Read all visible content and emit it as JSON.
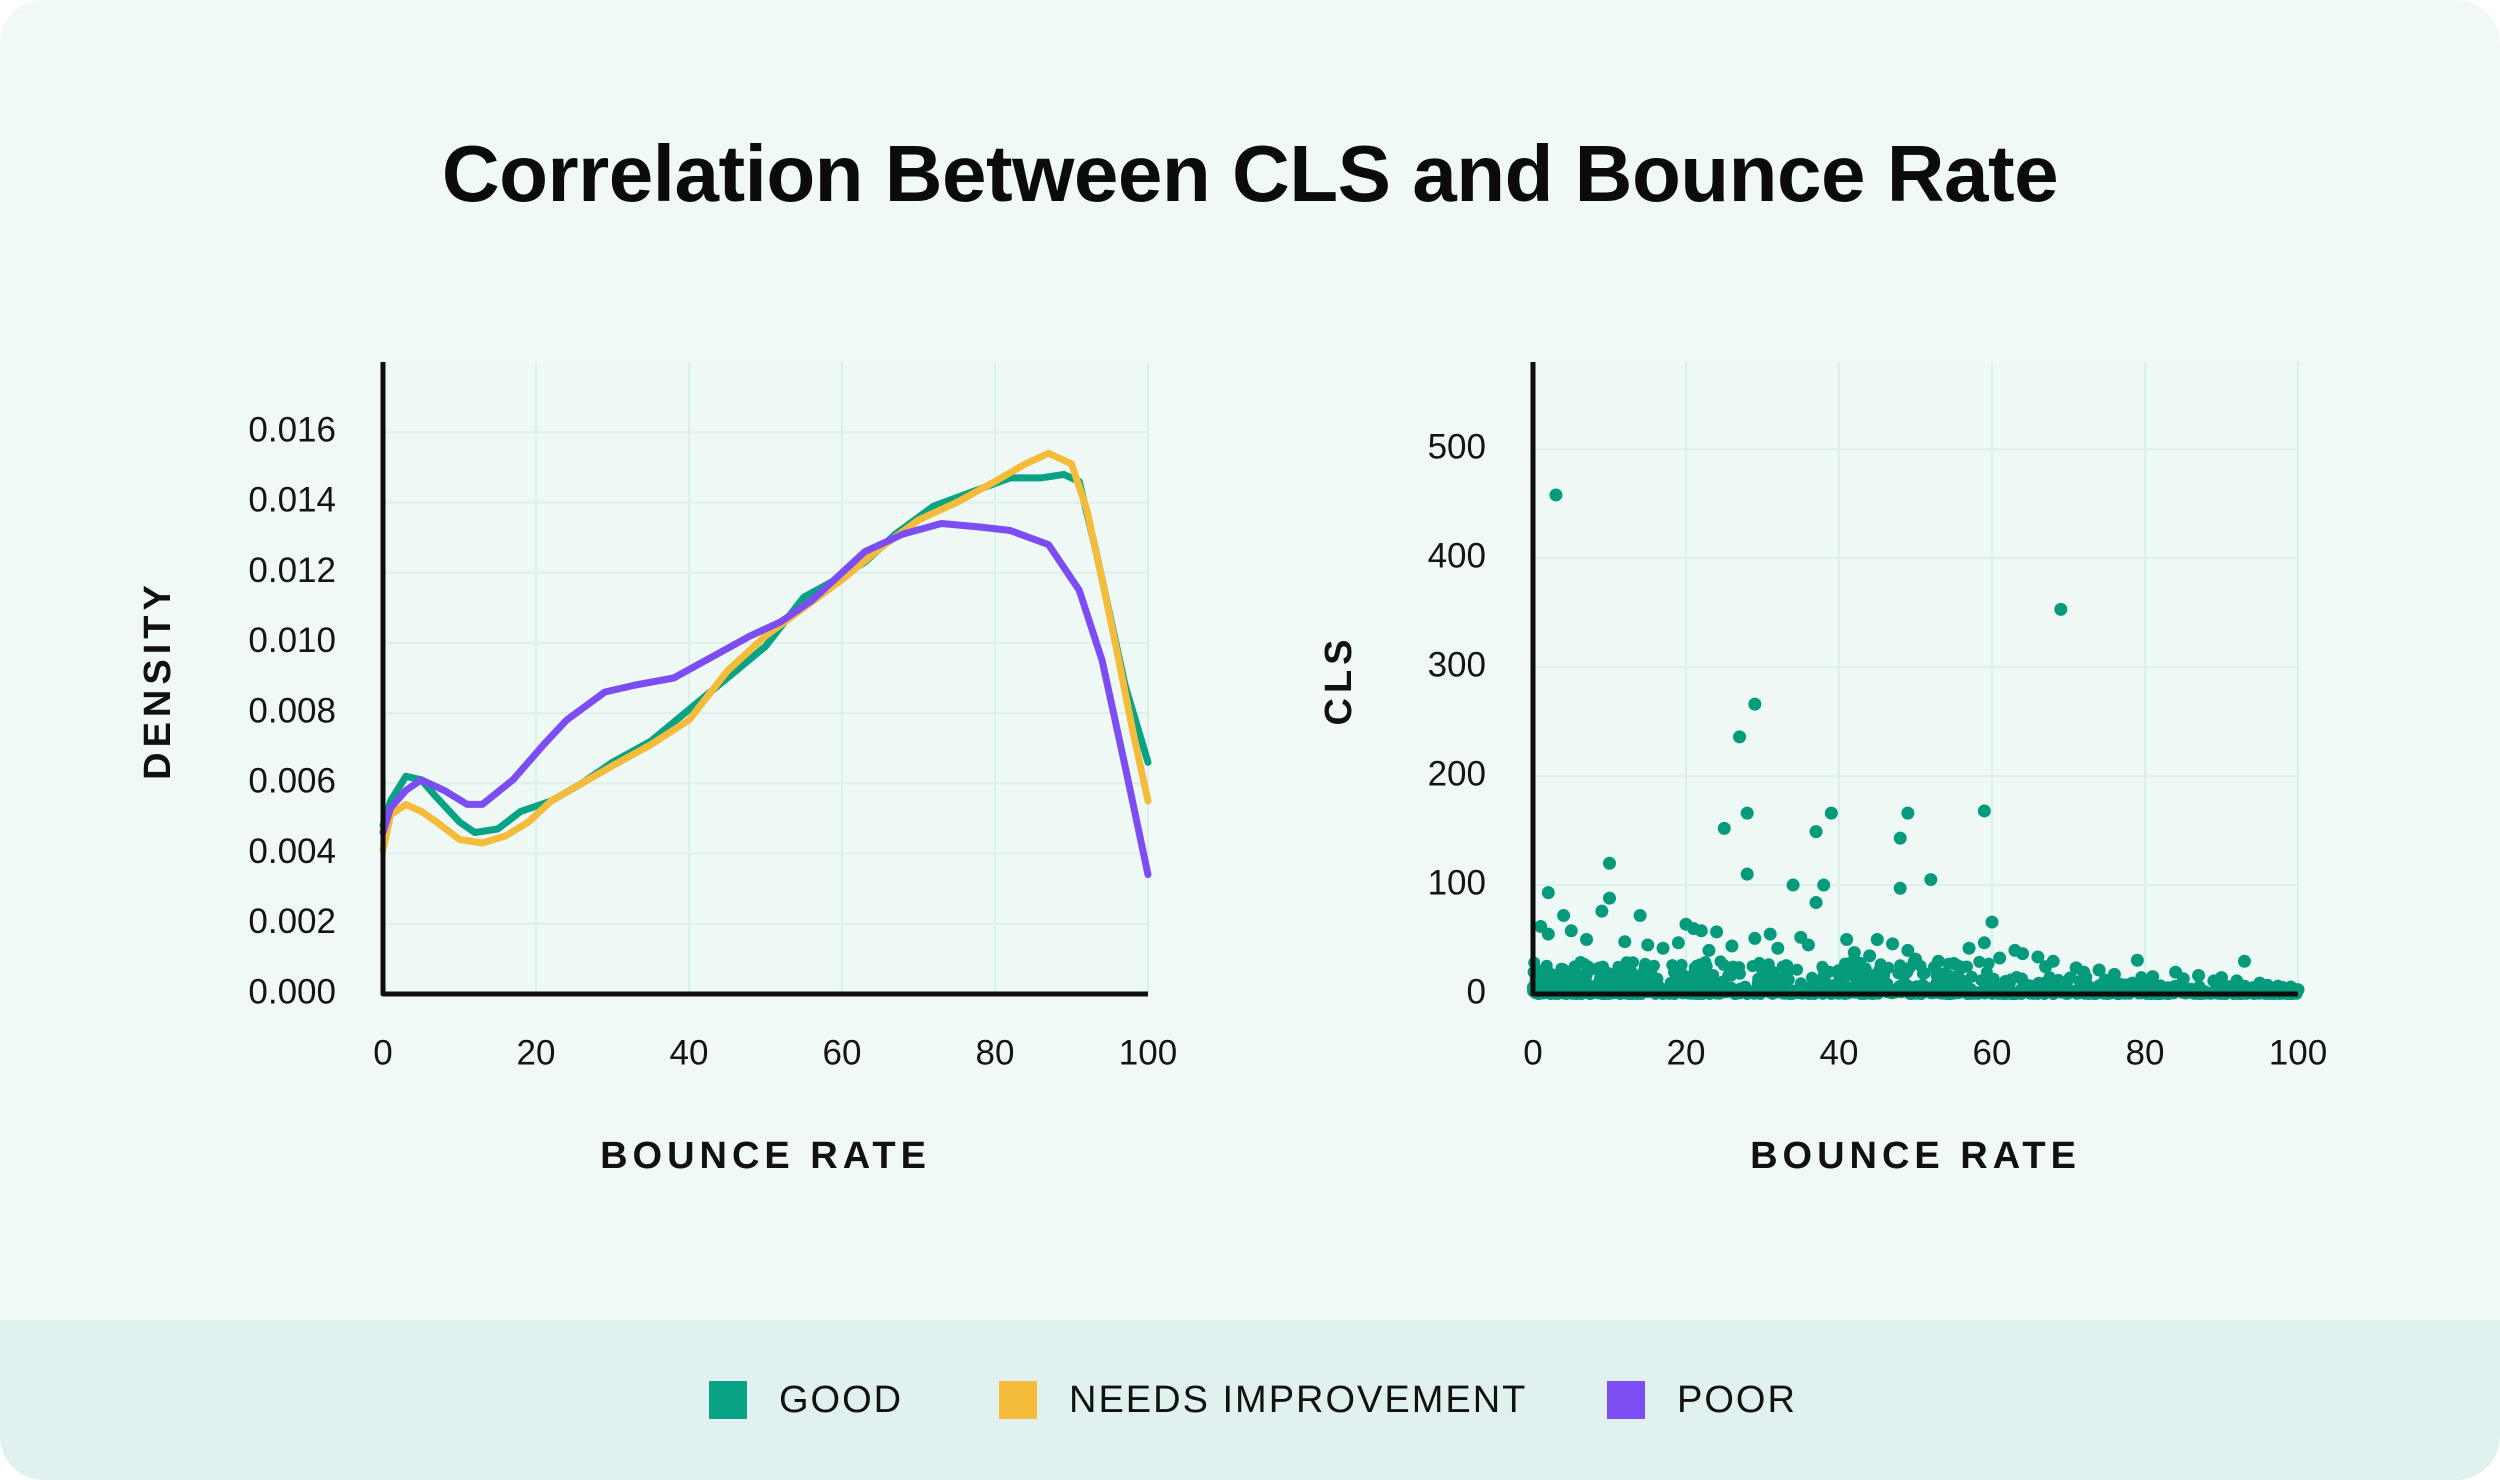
{
  "title": "Correlation Between CLS and Bounce Rate",
  "colors": {
    "good": "#08a284",
    "needs_improvement": "#f5bc3c",
    "poor": "#7c4df2",
    "scatter": "#069a7d"
  },
  "legend": [
    {
      "label": "GOOD",
      "color": "#08a284"
    },
    {
      "label": "NEEDS IMPROVEMENT",
      "color": "#f5bc3c"
    },
    {
      "label": "POOR",
      "color": "#7c4df2"
    }
  ],
  "chart_data": [
    {
      "type": "line",
      "xlabel": "BOUNCE RATE",
      "ylabel": "DENSITY",
      "xlim": [
        0,
        100
      ],
      "ylim": [
        0,
        0.018
      ],
      "xticks": [
        0,
        20,
        40,
        60,
        80,
        100
      ],
      "yticks": [
        "0.000",
        "0.002",
        "0.004",
        "0.006",
        "0.008",
        "0.010",
        "0.012",
        "0.014",
        "0.016"
      ],
      "grid": true,
      "series": [
        {
          "name": "GOOD",
          "x": [
            0,
            1,
            3,
            5,
            7,
            10,
            12,
            15,
            18,
            22,
            26,
            30,
            35,
            40,
            45,
            50,
            55,
            60,
            63,
            67,
            72,
            77,
            82,
            86,
            89,
            91,
            93,
            95,
            97,
            100
          ],
          "y": [
            0.0048,
            0.0055,
            0.0062,
            0.0061,
            0.0056,
            0.0049,
            0.0046,
            0.0047,
            0.0052,
            0.0055,
            0.006,
            0.0066,
            0.0072,
            0.0081,
            0.009,
            0.0099,
            0.0113,
            0.0119,
            0.0123,
            0.0131,
            0.0139,
            0.0143,
            0.0147,
            0.0147,
            0.0148,
            0.0146,
            0.0128,
            0.0108,
            0.0088,
            0.0066
          ]
        },
        {
          "name": "NEEDS IMPROVEMENT",
          "x": [
            0,
            1,
            3,
            5,
            7,
            10,
            13,
            16,
            19,
            22,
            26,
            30,
            35,
            40,
            45,
            50,
            55,
            60,
            65,
            70,
            75,
            80,
            84,
            87,
            90,
            92,
            94,
            96,
            98,
            100
          ],
          "y": [
            0.0041,
            0.0051,
            0.0054,
            0.0052,
            0.0049,
            0.0044,
            0.0043,
            0.0045,
            0.0049,
            0.0055,
            0.006,
            0.0065,
            0.0071,
            0.0078,
            0.0092,
            0.0102,
            0.011,
            0.0118,
            0.0127,
            0.0135,
            0.014,
            0.0146,
            0.0151,
            0.0154,
            0.0151,
            0.0138,
            0.0118,
            0.0097,
            0.0075,
            0.0055
          ]
        },
        {
          "name": "POOR",
          "x": [
            0,
            1,
            3,
            5,
            8,
            11,
            13,
            17,
            21,
            24,
            29,
            33,
            38,
            43,
            48,
            52,
            56,
            60,
            63,
            68,
            73,
            78,
            82,
            87,
            91,
            94,
            97,
            100
          ],
          "y": [
            0.0046,
            0.0053,
            0.0058,
            0.0061,
            0.0058,
            0.0054,
            0.0054,
            0.0061,
            0.0071,
            0.0078,
            0.0086,
            0.0088,
            0.009,
            0.0096,
            0.0102,
            0.0106,
            0.0112,
            0.012,
            0.0126,
            0.0131,
            0.0134,
            0.0133,
            0.0132,
            0.0128,
            0.0115,
            0.0095,
            0.0065,
            0.0034
          ]
        }
      ]
    },
    {
      "type": "scatter",
      "xlabel": "BOUNCE RATE",
      "ylabel": "CLS",
      "xlim": [
        0,
        100
      ],
      "ylim": [
        0,
        580
      ],
      "xticks": [
        0,
        20,
        40,
        60,
        80,
        100
      ],
      "yticks": [
        0,
        100,
        200,
        300,
        400,
        500
      ],
      "grid": true,
      "series": [
        {
          "points": [
            [
              3,
              458
            ],
            [
              69,
              353
            ],
            [
              29,
              266
            ],
            [
              27,
              236
            ],
            [
              28,
              166
            ],
            [
              25,
              152
            ],
            [
              37,
              149
            ],
            [
              39,
              166
            ],
            [
              48,
              143
            ],
            [
              49,
              166
            ],
            [
              59,
              168
            ],
            [
              10,
              120
            ],
            [
              28,
              110
            ],
            [
              34,
              100
            ],
            [
              38,
              100
            ],
            [
              48,
              97
            ],
            [
              52,
              105
            ],
            [
              2,
              93
            ],
            [
              10,
              88
            ],
            [
              4,
              72
            ],
            [
              9,
              76
            ],
            [
              14,
              72
            ],
            [
              37,
              84
            ],
            [
              60,
              66
            ],
            [
              20,
              64
            ],
            [
              21,
              60
            ],
            [
              22,
              58
            ],
            [
              24,
              57
            ],
            [
              29,
              51
            ],
            [
              31,
              55
            ],
            [
              35,
              52
            ],
            [
              41,
              50
            ],
            [
              45,
              50
            ],
            [
              47,
              46
            ],
            [
              49,
              40
            ],
            [
              57,
              42
            ],
            [
              59,
              47
            ],
            [
              63,
              40
            ],
            [
              64,
              37
            ],
            [
              66,
              34
            ],
            [
              68,
              30
            ],
            [
              71,
              24
            ],
            [
              74,
              22
            ],
            [
              79,
              31
            ],
            [
              84,
              20
            ],
            [
              87,
              17
            ],
            [
              90,
              15
            ],
            [
              93,
              30
            ],
            [
              95,
              10
            ],
            [
              98,
              6
            ],
            [
              100,
              4
            ],
            [
              1,
              62
            ],
            [
              2,
              55
            ],
            [
              5,
              58
            ],
            [
              7,
              50
            ],
            [
              12,
              48
            ],
            [
              15,
              45
            ],
            [
              17,
              42
            ],
            [
              19,
              47
            ],
            [
              23,
              40
            ],
            [
              26,
              44
            ],
            [
              32,
              42
            ],
            [
              36,
              45
            ],
            [
              42,
              38
            ],
            [
              44,
              35
            ],
            [
              50,
              32
            ],
            [
              53,
              30
            ],
            [
              55,
              28
            ],
            [
              61,
              33
            ],
            [
              67,
              25
            ],
            [
              72,
              20
            ],
            [
              76,
              18
            ],
            [
              81,
              16
            ],
            [
              85,
              14
            ],
            [
              89,
              12
            ],
            [
              92,
              12
            ],
            [
              96,
              8
            ]
          ]
        }
      ]
    }
  ]
}
